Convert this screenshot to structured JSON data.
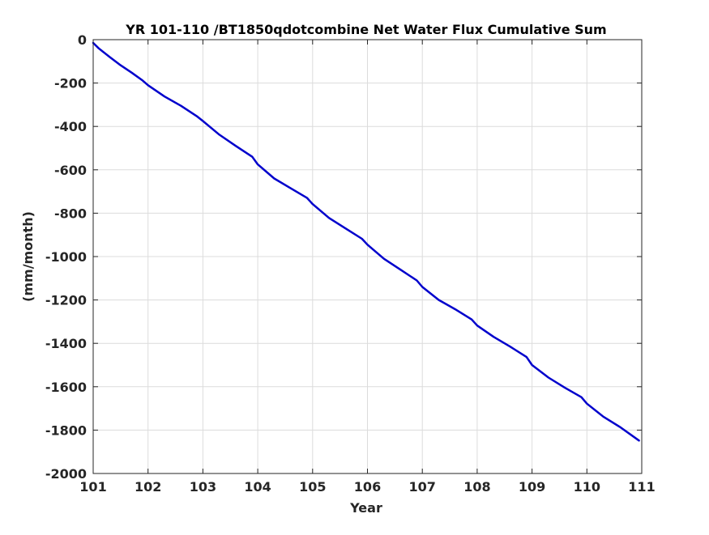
{
  "chart_data": {
    "type": "line",
    "title": "YR 101-110 /BT1850qdotcombine Net Water Flux Cumulative Sum",
    "xlabel": "Year",
    "ylabel": "(mm/month)",
    "xlim": [
      101,
      111
    ],
    "ylim": [
      -2000,
      0
    ],
    "xticks": [
      101,
      102,
      103,
      104,
      105,
      106,
      107,
      108,
      109,
      110,
      111
    ],
    "yticks": [
      0,
      -200,
      -400,
      -600,
      -800,
      -1000,
      -1200,
      -1400,
      -1600,
      -1800,
      -2000
    ],
    "grid": true,
    "line_color": "#0000cc",
    "series": [
      {
        "x": [
          101.0,
          101.1,
          101.3,
          101.5,
          101.7,
          101.9,
          102.0,
          102.3,
          102.6,
          102.9,
          103.0,
          103.3,
          103.6,
          103.9,
          104.0,
          104.3,
          104.6,
          104.9,
          105.0,
          105.3,
          105.6,
          105.9,
          106.0,
          106.3,
          106.6,
          106.9,
          107.0,
          107.3,
          107.6,
          107.9,
          108.0,
          108.3,
          108.6,
          108.9,
          109.0,
          109.3,
          109.6,
          109.9,
          110.0,
          110.3,
          110.6,
          110.95
        ],
        "y": [
          -15,
          -40,
          -80,
          -118,
          -152,
          -188,
          -210,
          -262,
          -305,
          -355,
          -375,
          -438,
          -490,
          -540,
          -575,
          -640,
          -685,
          -730,
          -758,
          -822,
          -870,
          -918,
          -945,
          -1010,
          -1060,
          -1110,
          -1140,
          -1200,
          -1243,
          -1290,
          -1318,
          -1370,
          -1415,
          -1463,
          -1500,
          -1558,
          -1605,
          -1648,
          -1678,
          -1738,
          -1785,
          -1848
        ]
      }
    ]
  }
}
